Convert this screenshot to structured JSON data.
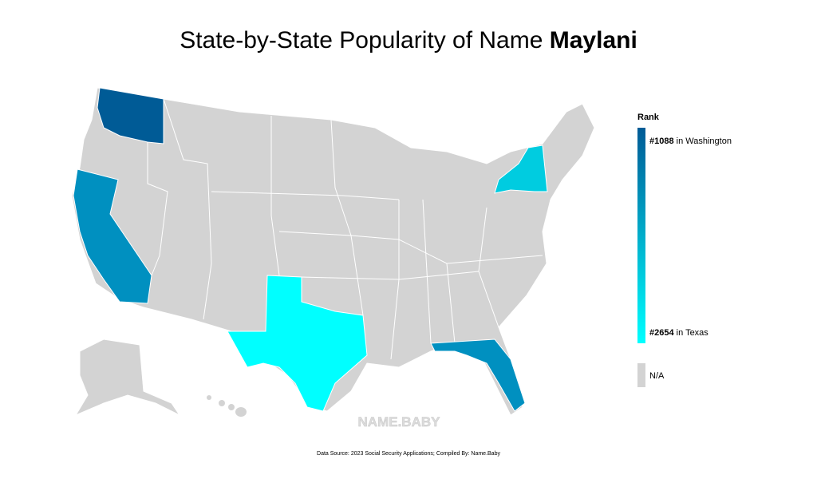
{
  "header": {
    "title": "State-by-State Popularity of Name ",
    "name": "Maylani"
  },
  "legend": {
    "title": "Rank",
    "top": {
      "rank": "#1088",
      "text": " in Washington",
      "color": "#005b96"
    },
    "bottom": {
      "rank": "#2654",
      "text": " in Texas",
      "color": "#00ffff"
    },
    "na": {
      "label": "N/A",
      "color": "#d3d3d3"
    }
  },
  "watermark": "NAME.BABY",
  "footer": "Data Source: 2023 Social Security Applications; Compiled By: Name.Baby"
}
